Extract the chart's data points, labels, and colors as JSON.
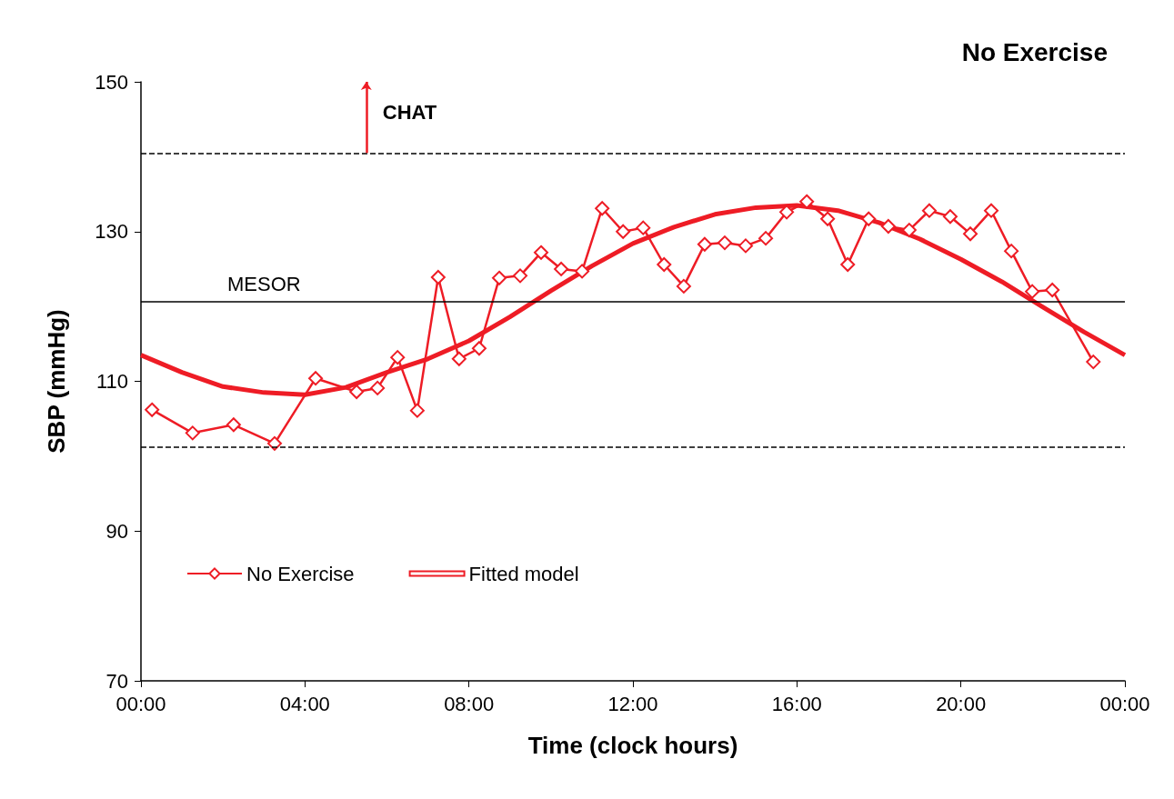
{
  "chart_data": {
    "type": "line",
    "title": "No Exercise",
    "xlabel": "Time (clock hours)",
    "ylabel": "SBP (mmHg)",
    "xlim": [
      0,
      24
    ],
    "xticks": [
      {
        "value": 0,
        "label": "00:00"
      },
      {
        "value": 4,
        "label": "04:00"
      },
      {
        "value": 8,
        "label": "08:00"
      },
      {
        "value": 12,
        "label": "12:00"
      },
      {
        "value": 16,
        "label": "16:00"
      },
      {
        "value": 20,
        "label": "20:00"
      },
      {
        "value": 24,
        "label": "00:00"
      }
    ],
    "ylim": [
      70,
      150
    ],
    "yticks": [
      70,
      90,
      110,
      130,
      150
    ],
    "grid": false,
    "legend": "bottom left",
    "series": [
      {
        "name": "No Exercise",
        "color": "#ee1c25",
        "marker": "diamond",
        "x": [
          0.27,
          1.26,
          2.26,
          3.26,
          4.26,
          5.26,
          5.77,
          6.26,
          6.74,
          7.25,
          7.76,
          8.25,
          8.74,
          9.25,
          9.76,
          10.25,
          10.76,
          11.25,
          11.76,
          12.25,
          12.76,
          13.24,
          13.75,
          14.24,
          14.75,
          15.24,
          15.75,
          16.24,
          16.75,
          17.24,
          17.75,
          18.23,
          18.74,
          19.23,
          19.74,
          20.23,
          20.74,
          21.23,
          21.74,
          22.23,
          23.23
        ],
        "values": [
          106.2,
          103.1,
          104.2,
          101.7,
          110.4,
          108.6,
          109.1,
          113.2,
          106.1,
          123.9,
          113.0,
          114.4,
          123.8,
          124.1,
          127.2,
          125.0,
          124.7,
          133.1,
          130.0,
          130.5,
          125.6,
          122.7,
          128.3,
          128.5,
          128.1,
          129.1,
          132.6,
          134.0,
          131.7,
          125.6,
          131.7,
          130.7,
          130.2,
          132.8,
          132.0,
          129.7,
          132.8,
          127.4,
          122.0,
          122.2,
          112.6
        ]
      },
      {
        "name": "Fitted model",
        "color": "#ee1c25",
        "marker": "none",
        "x": [
          0,
          1,
          2,
          3,
          4,
          5,
          6,
          7,
          8,
          9,
          10,
          11,
          12,
          13,
          14,
          15,
          16,
          17,
          18,
          19,
          20,
          21,
          22,
          23,
          24
        ],
        "values": [
          113.5,
          111.2,
          109.3,
          108.5,
          108.2,
          109.2,
          111.2,
          113.0,
          115.4,
          118.6,
          122.1,
          125.4,
          128.4,
          130.6,
          132.3,
          133.2,
          133.5,
          132.8,
          131.2,
          129.0,
          126.3,
          123.3,
          119.9,
          116.6,
          113.5
        ]
      }
    ],
    "ref_lines": [
      {
        "axis": "y",
        "value": 120.7,
        "label": "MESOR",
        "color": "#000000",
        "line_style": "solid"
      },
      {
        "axis": "y",
        "value": 140.5,
        "label": null,
        "color": "#000000",
        "line_style": "dashed"
      },
      {
        "axis": "y",
        "value": 101.2,
        "label": null,
        "color": "#000000",
        "line_style": "dashed"
      }
    ],
    "annotations": [
      "CHAT"
    ]
  }
}
